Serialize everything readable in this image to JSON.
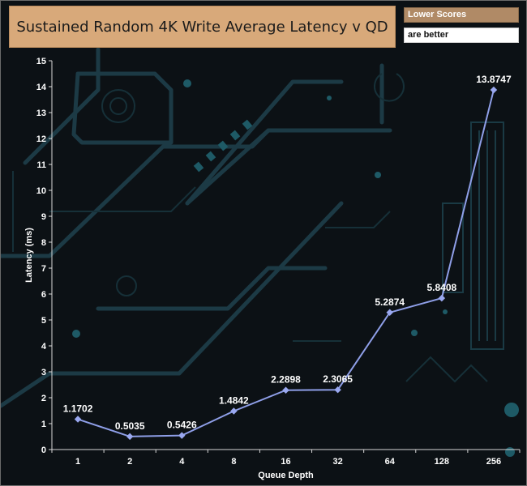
{
  "legend": {
    "line1": "Lower Scores",
    "line2": "are better"
  },
  "colors": {
    "series": "#8f9fe8",
    "marker": "#9aa8f0",
    "title_bg": "#d8a97a",
    "legend_bg": "#b08a66",
    "background": "#0c1115",
    "circuit": "#1c3a45"
  },
  "chart_data": {
    "type": "line",
    "title": "Sustained Random 4K Write Average Latency v QD",
    "xlabel": "Queue Depth",
    "ylabel": "Latency (ms)",
    "categories": [
      "1",
      "2",
      "4",
      "8",
      "16",
      "32",
      "64",
      "128",
      "256"
    ],
    "series": [
      {
        "values": [
          1.1702,
          0.5035,
          0.5426,
          1.4842,
          2.2898,
          2.3065,
          5.2874,
          5.8408,
          13.8747
        ],
        "labels": [
          "1.1702",
          "0.5035",
          "0.5426",
          "1.4842",
          "2.2898",
          "2.3065",
          "5.2874",
          "5.8408",
          "13.8747"
        ]
      }
    ],
    "ylim": [
      0,
      15
    ],
    "yticks": [
      0,
      1,
      2,
      3,
      4,
      5,
      6,
      7,
      8,
      9,
      10,
      11,
      12,
      13,
      14,
      15
    ],
    "grid": false,
    "legend_position": "top-right"
  }
}
